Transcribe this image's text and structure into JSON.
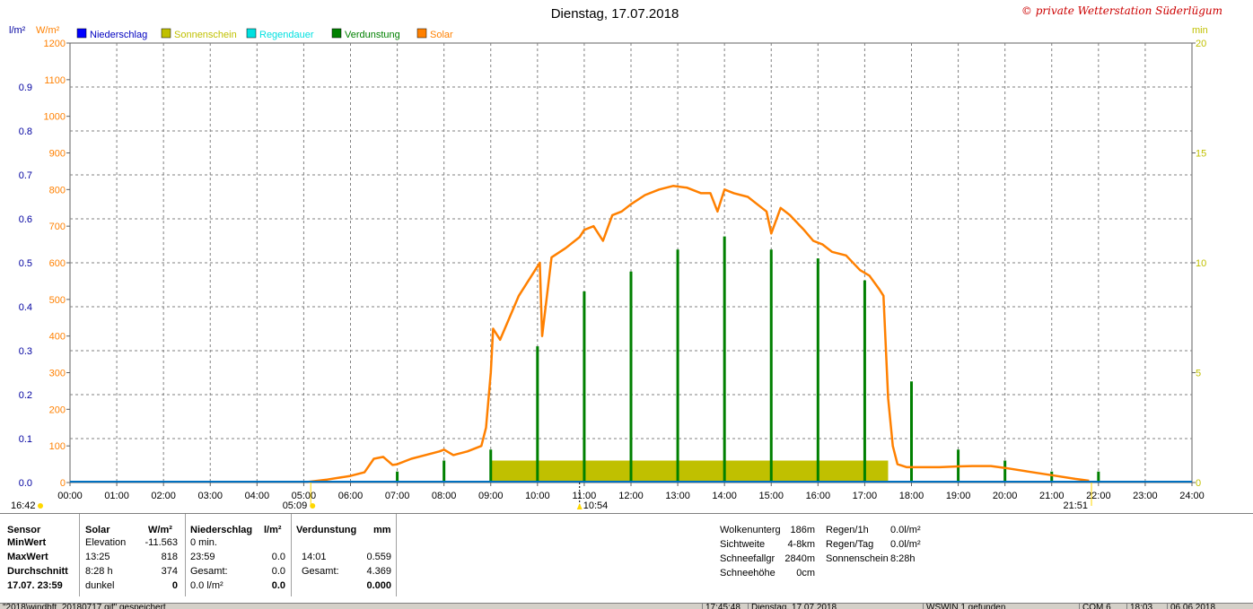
{
  "title": "Dienstag, 17.07.2018",
  "copyright": "© private Wetterstation Süderlügum",
  "units": {
    "left_outer": "l/m²",
    "left_inner": "W/m²",
    "right": "min"
  },
  "legend": [
    {
      "label": "Niederschlag",
      "color": "#0000ff"
    },
    {
      "label": "Sonnenschein",
      "color": "#c0c000"
    },
    {
      "label": "Regendauer",
      "color": "#00e0e0"
    },
    {
      "label": "Verdunstung",
      "color": "#008000"
    },
    {
      "label": "Solar",
      "color": "#ff8000"
    }
  ],
  "colors": {
    "solar": "#ff8000",
    "sunshine": "#c0c000",
    "evaporation": "#008000",
    "rain": "#0070c0",
    "grid": "#808080",
    "left_outer": "#0000a0",
    "left_inner": "#ff8000",
    "right": "#c0c000"
  },
  "time_markers": {
    "sunrise": "05:09",
    "sunset": "21:51",
    "solar_noon": "10:54",
    "left": "16:42"
  },
  "chart_data": {
    "type": "line",
    "x_range": [
      0,
      24
    ],
    "x_ticks": [
      "00:00",
      "01:00",
      "02:00",
      "03:00",
      "04:00",
      "05:00",
      "06:00",
      "07:00",
      "08:00",
      "09:00",
      "10:00",
      "11:00",
      "12:00",
      "13:00",
      "14:00",
      "15:00",
      "16:00",
      "17:00",
      "18:00",
      "19:00",
      "20:00",
      "21:00",
      "22:00",
      "23:00",
      "24:00"
    ],
    "y_left_outer": {
      "label": "l/m²",
      "range": [
        0,
        1.0
      ],
      "ticks": [
        "0.0",
        "0.1",
        "0.2",
        "0.3",
        "0.4",
        "0.5",
        "0.6",
        "0.7",
        "0.8",
        "0.9"
      ]
    },
    "y_left_inner": {
      "label": "W/m²",
      "range": [
        0,
        1200
      ],
      "ticks": [
        "0",
        "100",
        "200",
        "300",
        "400",
        "500",
        "600",
        "700",
        "800",
        "900",
        "1000",
        "1100",
        "1200"
      ]
    },
    "y_right": {
      "label": "min",
      "range": [
        0,
        20
      ],
      "ticks": [
        "0",
        "5",
        "10",
        "15",
        "20"
      ]
    },
    "grid": true,
    "series": [
      {
        "name": "Solar",
        "axis": "W/m²",
        "x": [
          5.1,
          5.5,
          6.0,
          6.3,
          6.5,
          6.7,
          6.9,
          7.0,
          7.3,
          7.6,
          7.9,
          8.0,
          8.2,
          8.5,
          8.8,
          8.9,
          9.0,
          9.05,
          9.2,
          9.4,
          9.6,
          9.8,
          9.95,
          10.05,
          10.1,
          10.3,
          10.6,
          10.9,
          11.0,
          11.2,
          11.4,
          11.6,
          11.8,
          12.0,
          12.3,
          12.6,
          12.9,
          13.2,
          13.5,
          13.7,
          13.85,
          14.0,
          14.2,
          14.5,
          14.7,
          14.9,
          15.0,
          15.2,
          15.4,
          15.7,
          15.9,
          16.1,
          16.3,
          16.6,
          16.9,
          17.1,
          17.3,
          17.4,
          17.5,
          17.6,
          17.7,
          17.9,
          18.2,
          18.6,
          19.0,
          19.3,
          19.5,
          19.7,
          20.0,
          20.5,
          21.0,
          21.5,
          21.8
        ],
        "y": [
          2,
          8,
          18,
          28,
          65,
          70,
          48,
          50,
          65,
          75,
          85,
          90,
          75,
          85,
          100,
          150,
          300,
          420,
          390,
          450,
          510,
          550,
          580,
          600,
          400,
          615,
          640,
          670,
          690,
          700,
          660,
          730,
          740,
          760,
          785,
          800,
          810,
          805,
          790,
          790,
          740,
          800,
          790,
          780,
          760,
          740,
          680,
          750,
          730,
          690,
          660,
          650,
          630,
          620,
          580,
          565,
          530,
          510,
          230,
          100,
          50,
          42,
          42,
          42,
          44,
          45,
          45,
          45,
          40,
          30,
          20,
          10,
          5
        ]
      },
      {
        "name": "Verdunstung",
        "axis": "min",
        "x": [
          7.0,
          8.0,
          9.0,
          10.0,
          11.0,
          12.0,
          13.0,
          14.0,
          15.0,
          16.0,
          17.0,
          18.0,
          19.0,
          20.0,
          21.0,
          22.0
        ],
        "y": [
          0.5,
          1.0,
          1.5,
          6.2,
          8.7,
          9.6,
          10.6,
          11.2,
          10.6,
          10.2,
          9.2,
          4.6,
          1.5,
          1.0,
          0.5,
          0.5
        ]
      },
      {
        "name": "Sonnenschein",
        "axis": "min",
        "x": [
          9.0,
          17.5
        ],
        "y": [
          1.0,
          1.0
        ]
      }
    ]
  },
  "table": {
    "headers": {
      "sensor": "Sensor",
      "solar": "Solar",
      "solar_unit": "W/m²",
      "rain": "Niederschlag",
      "rain_unit": "l/m²",
      "evap": "Verdunstung",
      "evap_unit": "mm"
    },
    "rows": [
      {
        "label": "MinWert",
        "s1": "Elevation",
        "s2": "-11.563",
        "r1": "0 min.",
        "r2": "",
        "e1": "",
        "e2": ""
      },
      {
        "label": "MaxWert",
        "s1": "13:25",
        "s2": "818",
        "r1": "23:59",
        "r2": "0.0",
        "e1": "14:01",
        "e2": "0.559"
      },
      {
        "label": "Durchschnitt",
        "s1": "8:28 h",
        "s2": "374",
        "r1": "Gesamt:",
        "r2": "0.0",
        "e1": "Gesamt:",
        "e2": "4.369"
      },
      {
        "label": "17.07. 23:59",
        "s1": "dunkel",
        "s2": "0",
        "r1": "0.0 l/m²",
        "r2": "0.0",
        "e1": "",
        "e2": "0.000"
      }
    ],
    "misc": [
      {
        "k": "Wolkenunterg",
        "v": "186m"
      },
      {
        "k": "Sichtweite",
        "v": "4-8km"
      },
      {
        "k": "Schneefallgr",
        "v": "2840m"
      },
      {
        "k": "Schneehöhe",
        "v": "0cm"
      }
    ],
    "rain_stats": [
      {
        "k": "Regen/1h",
        "v": "0.0l/m²"
      },
      {
        "k": "Regen/Tag",
        "v": "0.0l/m²"
      },
      {
        "k": "Sonnenschein",
        "v": "8:28h"
      }
    ]
  },
  "statusbar": {
    "file": "\"2018\\windbft_20180717.gif\" gespeichert",
    "time": "17:45:48",
    "date": "Dienstag, 17.07.2018",
    "device": "WSWIN 1 gefunden",
    "port": "COM 6",
    "clock": "18:03",
    "today": "06.06.2018"
  }
}
